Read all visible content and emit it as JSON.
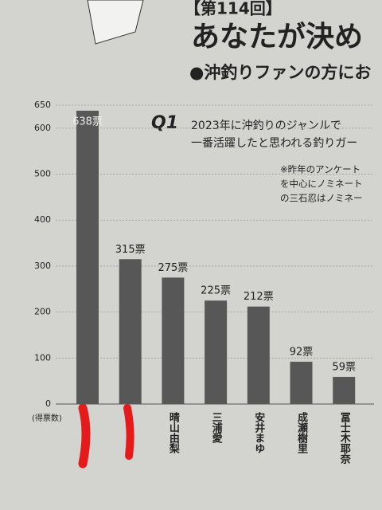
{
  "chart_data": {
    "type": "bar",
    "header": "【第114回】",
    "title": "あなたが決め",
    "subtitle": "●沖釣りファンの方にお",
    "question_label": "Q1",
    "question_lines": [
      "2023年に沖釣りのジャンルで",
      "一番活躍したと思われる釣りガー"
    ],
    "notes": [
      "※昨年のアンケート",
      "を中心にノミネート",
      "の三石忍はノミネー"
    ],
    "y_label": "(得票数)",
    "categories": [
      null,
      null,
      "晴山由梨",
      "三浦愛",
      "安井まゆ",
      "成瀬樹里",
      "冨士木耶奈"
    ],
    "values": [
      638,
      315,
      275,
      225,
      212,
      92,
      59
    ],
    "value_labels": [
      "638票",
      "315票",
      "275票",
      "225票",
      "212票",
      "92票",
      "59票"
    ],
    "color": "#575757",
    "ylim": [
      0,
      650
    ],
    "yticks": [
      0,
      100,
      200,
      300,
      400,
      500,
      600,
      650
    ],
    "grid": true
  }
}
